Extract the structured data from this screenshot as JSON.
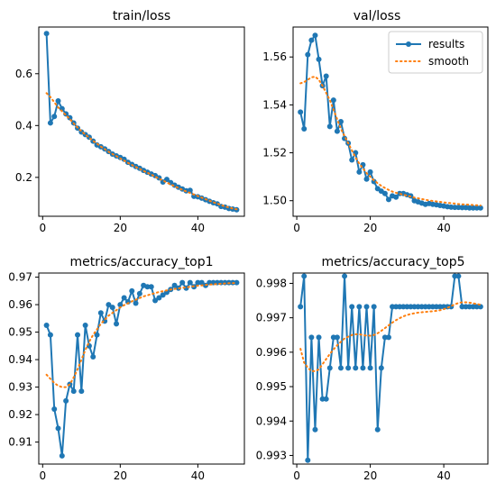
{
  "colors": {
    "results": "#1f77b4",
    "smooth": "#ff7f0e"
  },
  "chart_data": [
    {
      "type": "line",
      "title": "train/loss",
      "xlim": [
        -1,
        52
      ],
      "ylim": [
        0.05,
        0.78
      ],
      "xticks": [
        0,
        20,
        40
      ],
      "yticks": [
        0.2,
        0.4,
        0.6
      ],
      "ytick_labels": [
        "0.2",
        "0.4",
        "0.6"
      ],
      "legend": null,
      "series": [
        {
          "name": "results",
          "x": [
            1,
            2,
            3,
            4,
            5,
            6,
            7,
            8,
            9,
            10,
            11,
            12,
            13,
            14,
            15,
            16,
            17,
            18,
            19,
            20,
            21,
            22,
            23,
            24,
            25,
            26,
            27,
            28,
            29,
            30,
            31,
            32,
            33,
            34,
            35,
            36,
            37,
            38,
            39,
            40,
            41,
            42,
            43,
            44,
            45,
            46,
            47,
            48,
            49,
            50
          ],
          "y": [
            0.755,
            0.41,
            0.435,
            0.495,
            0.465,
            0.445,
            0.43,
            0.41,
            0.39,
            0.375,
            0.365,
            0.355,
            0.34,
            0.325,
            0.318,
            0.31,
            0.3,
            0.29,
            0.283,
            0.277,
            0.27,
            0.258,
            0.25,
            0.242,
            0.235,
            0.227,
            0.22,
            0.213,
            0.207,
            0.198,
            0.182,
            0.192,
            0.18,
            0.17,
            0.162,
            0.155,
            0.148,
            0.15,
            0.127,
            0.125,
            0.12,
            0.114,
            0.108,
            0.102,
            0.098,
            0.088,
            0.085,
            0.08,
            0.078,
            0.075
          ]
        },
        {
          "name": "smooth",
          "x": [
            1,
            2,
            3,
            4,
            5,
            6,
            7,
            8,
            9,
            10,
            11,
            12,
            13,
            14,
            15,
            16,
            17,
            18,
            19,
            20,
            21,
            22,
            23,
            24,
            25,
            26,
            27,
            28,
            29,
            30,
            31,
            32,
            33,
            34,
            35,
            36,
            37,
            38,
            39,
            40,
            41,
            42,
            43,
            44,
            45,
            46,
            47,
            48,
            49,
            50
          ],
          "y": [
            0.525,
            0.51,
            0.49,
            0.47,
            0.455,
            0.44,
            0.425,
            0.408,
            0.392,
            0.378,
            0.365,
            0.353,
            0.341,
            0.33,
            0.319,
            0.309,
            0.299,
            0.29,
            0.282,
            0.273,
            0.265,
            0.256,
            0.248,
            0.24,
            0.233,
            0.225,
            0.218,
            0.211,
            0.203,
            0.195,
            0.188,
            0.18,
            0.173,
            0.166,
            0.159,
            0.152,
            0.146,
            0.14,
            0.134,
            0.128,
            0.122,
            0.116,
            0.11,
            0.104,
            0.099,
            0.093,
            0.088,
            0.084,
            0.08,
            0.077
          ]
        }
      ]
    },
    {
      "type": "line",
      "title": "val/loss",
      "xlim": [
        -1,
        52
      ],
      "ylim": [
        1.4935,
        1.5725
      ],
      "xticks": [
        0,
        20,
        40
      ],
      "yticks": [
        1.5,
        1.52,
        1.54,
        1.56
      ],
      "ytick_labels": [
        "1.50",
        "1.52",
        "1.54",
        "1.56"
      ],
      "legend": {
        "position": "top-right",
        "entries": [
          "results",
          "smooth"
        ]
      },
      "series": [
        {
          "name": "results",
          "x": [
            1,
            2,
            3,
            4,
            5,
            6,
            7,
            8,
            9,
            10,
            11,
            12,
            13,
            14,
            15,
            16,
            17,
            18,
            19,
            20,
            21,
            22,
            23,
            24,
            25,
            26,
            27,
            28,
            29,
            30,
            31,
            32,
            33,
            34,
            35,
            36,
            37,
            38,
            39,
            40,
            41,
            42,
            43,
            44,
            45,
            46,
            47,
            48,
            49,
            50
          ],
          "y": [
            1.537,
            1.53,
            1.561,
            1.567,
            1.569,
            1.559,
            1.548,
            1.552,
            1.531,
            1.542,
            1.529,
            1.533,
            1.526,
            1.524,
            1.517,
            1.52,
            1.512,
            1.515,
            1.509,
            1.512,
            1.508,
            1.505,
            1.504,
            1.503,
            1.5005,
            1.502,
            1.5015,
            1.503,
            1.503,
            1.5025,
            1.502,
            1.5,
            1.4995,
            1.499,
            1.4985,
            1.4988,
            1.4985,
            1.4983,
            1.498,
            1.4978,
            1.4975,
            1.4973,
            1.4972,
            1.4972,
            1.4971,
            1.4971,
            1.497,
            1.497,
            1.497,
            1.497
          ]
        },
        {
          "name": "smooth",
          "x": [
            1,
            2,
            3,
            4,
            5,
            6,
            7,
            8,
            9,
            10,
            11,
            12,
            13,
            14,
            15,
            16,
            17,
            18,
            19,
            20,
            21,
            22,
            23,
            24,
            25,
            26,
            27,
            28,
            29,
            30,
            31,
            32,
            33,
            34,
            35,
            36,
            37,
            38,
            39,
            40,
            41,
            42,
            43,
            44,
            45,
            46,
            47,
            48,
            49,
            50
          ],
          "y": [
            1.549,
            1.5495,
            1.5505,
            1.5515,
            1.5518,
            1.5505,
            1.548,
            1.545,
            1.542,
            1.538,
            1.534,
            1.53,
            1.527,
            1.524,
            1.521,
            1.518,
            1.5155,
            1.5135,
            1.5115,
            1.51,
            1.5085,
            1.5073,
            1.5062,
            1.5053,
            1.5045,
            1.5038,
            1.5033,
            1.5029,
            1.5025,
            1.5021,
            1.5017,
            1.5013,
            1.501,
            1.5007,
            1.5004,
            1.5001,
            1.4999,
            1.4997,
            1.4995,
            1.4993,
            1.4991,
            1.499,
            1.4988,
            1.4986,
            1.4985,
            1.4984,
            1.4983,
            1.4982,
            1.4981,
            1.498
          ]
        }
      ]
    },
    {
      "type": "line",
      "title": "metrics/accuracy_top1",
      "xlim": [
        -1,
        52
      ],
      "ylim": [
        0.902,
        0.9715
      ],
      "xticks": [
        0,
        20,
        40
      ],
      "yticks": [
        0.91,
        0.92,
        0.93,
        0.94,
        0.95,
        0.96,
        0.97
      ],
      "ytick_labels": [
        "0.91",
        "0.92",
        "0.93",
        "0.94",
        "0.95",
        "0.96",
        "0.97"
      ],
      "legend": null,
      "series": [
        {
          "name": "results",
          "x": [
            1,
            2,
            3,
            4,
            5,
            6,
            7,
            8,
            9,
            10,
            11,
            12,
            13,
            14,
            15,
            16,
            17,
            18,
            19,
            20,
            21,
            22,
            23,
            24,
            25,
            26,
            27,
            28,
            29,
            30,
            31,
            32,
            33,
            34,
            35,
            36,
            37,
            38,
            39,
            40,
            41,
            42,
            43,
            44,
            45,
            46,
            47,
            48,
            49,
            50
          ],
          "y": [
            0.9525,
            0.949,
            0.922,
            0.915,
            0.905,
            0.925,
            0.931,
            0.9285,
            0.949,
            0.9285,
            0.9525,
            0.945,
            0.941,
            0.949,
            0.957,
            0.954,
            0.96,
            0.959,
            0.953,
            0.96,
            0.9625,
            0.961,
            0.965,
            0.9605,
            0.964,
            0.967,
            0.9665,
            0.9665,
            0.9615,
            0.9625,
            0.9635,
            0.9645,
            0.9655,
            0.967,
            0.966,
            0.968,
            0.966,
            0.968,
            0.9665,
            0.968,
            0.968,
            0.967,
            0.968,
            0.968,
            0.968,
            0.968,
            0.968,
            0.968,
            0.968,
            0.968
          ]
        },
        {
          "name": "smooth",
          "x": [
            1,
            2,
            3,
            4,
            5,
            6,
            7,
            8,
            9,
            10,
            11,
            12,
            13,
            14,
            15,
            16,
            17,
            18,
            19,
            20,
            21,
            22,
            23,
            24,
            25,
            26,
            27,
            28,
            29,
            30,
            31,
            32,
            33,
            34,
            35,
            36,
            37,
            38,
            39,
            40,
            41,
            42,
            43,
            44,
            45,
            46,
            47,
            48,
            49,
            50
          ],
          "y": [
            0.9345,
            0.933,
            0.9315,
            0.9305,
            0.93,
            0.93,
            0.931,
            0.9335,
            0.9365,
            0.94,
            0.9435,
            0.9465,
            0.949,
            0.951,
            0.953,
            0.9545,
            0.956,
            0.957,
            0.958,
            0.959,
            0.9598,
            0.9605,
            0.9612,
            0.9618,
            0.9624,
            0.963,
            0.9634,
            0.9638,
            0.9642,
            0.9646,
            0.9649,
            0.9652,
            0.9655,
            0.9657,
            0.9659,
            0.9661,
            0.9663,
            0.9665,
            0.9667,
            0.9669,
            0.967,
            0.9672,
            0.9673,
            0.9674,
            0.9675,
            0.9676,
            0.9677,
            0.9678,
            0.9678,
            0.9679
          ]
        }
      ]
    },
    {
      "type": "line",
      "title": "metrics/accuracy_top5",
      "xlim": [
        -1,
        52
      ],
      "ylim": [
        0.99275,
        0.9983
      ],
      "xticks": [
        0,
        20,
        40
      ],
      "yticks": [
        0.993,
        0.994,
        0.995,
        0.996,
        0.997,
        0.998
      ],
      "ytick_labels": [
        "0.993",
        "0.994",
        "0.995",
        "0.996",
        "0.997",
        "0.998"
      ],
      "legend": null,
      "series": [
        {
          "name": "results",
          "x": [
            1,
            2,
            3,
            4,
            5,
            6,
            7,
            8,
            9,
            10,
            11,
            12,
            13,
            14,
            15,
            16,
            17,
            18,
            19,
            20,
            21,
            22,
            23,
            24,
            25,
            26,
            27,
            28,
            29,
            30,
            31,
            32,
            33,
            34,
            35,
            36,
            37,
            38,
            39,
            40,
            41,
            42,
            43,
            44,
            45,
            46,
            47,
            48,
            49,
            50
          ],
          "y": [
            0.99732,
            0.99821,
            0.99286,
            0.99643,
            0.99375,
            0.99643,
            0.99464,
            0.99464,
            0.99554,
            0.99643,
            0.99643,
            0.99554,
            0.99821,
            0.99554,
            0.99732,
            0.99554,
            0.99732,
            0.99554,
            0.99732,
            0.99554,
            0.99732,
            0.99375,
            0.99554,
            0.99643,
            0.99643,
            0.99732,
            0.99732,
            0.99732,
            0.99732,
            0.99732,
            0.99732,
            0.99732,
            0.99732,
            0.99732,
            0.99732,
            0.99732,
            0.99732,
            0.99732,
            0.99732,
            0.99732,
            0.99732,
            0.99732,
            0.99821,
            0.99821,
            0.99732,
            0.99732,
            0.99732,
            0.99732,
            0.99732,
            0.99732
          ]
        },
        {
          "name": "smooth",
          "x": [
            1,
            2,
            3,
            4,
            5,
            6,
            7,
            8,
            9,
            10,
            11,
            12,
            13,
            14,
            15,
            16,
            17,
            18,
            19,
            20,
            21,
            22,
            23,
            24,
            25,
            26,
            27,
            28,
            29,
            30,
            31,
            32,
            33,
            34,
            35,
            36,
            37,
            38,
            39,
            40,
            41,
            42,
            43,
            44,
            45,
            46,
            47,
            48,
            49,
            50
          ],
          "y": [
            0.9961,
            0.9957,
            0.99555,
            0.99545,
            0.99545,
            0.9955,
            0.99565,
            0.9958,
            0.99595,
            0.99608,
            0.9962,
            0.9963,
            0.9964,
            0.99645,
            0.9965,
            0.99652,
            0.99652,
            0.9965,
            0.99648,
            0.99648,
            0.9965,
            0.99655,
            0.99662,
            0.9967,
            0.99678,
            0.99686,
            0.99693,
            0.99699,
            0.99704,
            0.99708,
            0.99711,
            0.99713,
            0.99715,
            0.99716,
            0.99717,
            0.99718,
            0.99719,
            0.9972,
            0.99722,
            0.99725,
            0.99729,
            0.99734,
            0.99739,
            0.99743,
            0.99745,
            0.99745,
            0.99744,
            0.99742,
            0.9974,
            0.99738
          ]
        }
      ]
    }
  ]
}
